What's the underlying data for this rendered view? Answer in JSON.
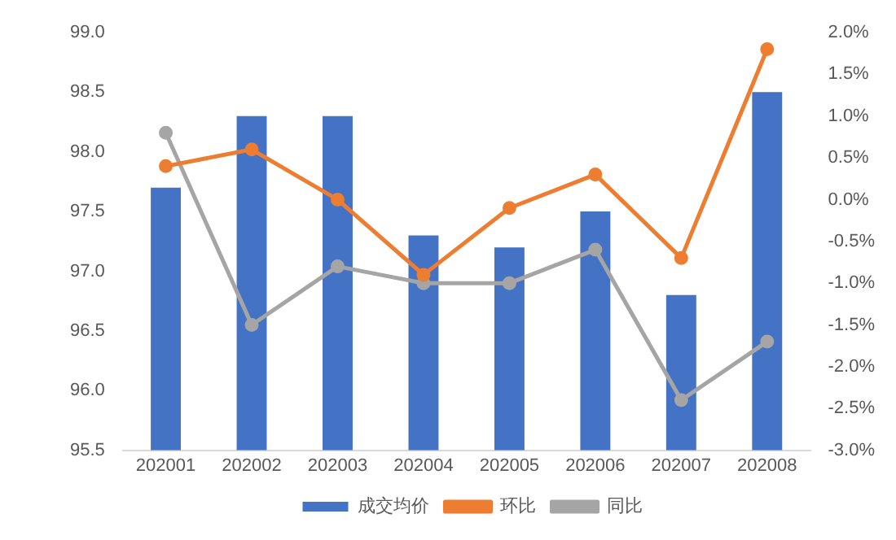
{
  "chart_data": {
    "type": "bar",
    "categories": [
      "202001",
      "202002",
      "202003",
      "202004",
      "202005",
      "202006",
      "202007",
      "202008"
    ],
    "series": [
      {
        "name": "成交均价",
        "color": "#4472c4",
        "values": [
          97.7,
          98.3,
          98.3,
          97.3,
          97.2,
          97.5,
          96.8,
          98.5
        ]
      },
      {
        "name": "环比",
        "type": "line",
        "axis": "y2",
        "color": "#ed7d31",
        "values": [
          0.4,
          0.6,
          0.0,
          -0.9,
          -0.1,
          0.3,
          -0.7,
          1.8
        ]
      },
      {
        "name": "同比",
        "type": "line",
        "axis": "y2",
        "color": "#a5a5a5",
        "values": [
          0.8,
          -1.5,
          -0.8,
          -1.0,
          -1.0,
          -0.6,
          -2.4,
          -1.7
        ]
      }
    ],
    "ylim": [
      95.5,
      99.0
    ],
    "yticks": [
      {
        "value": 95.5,
        "label": "95.5"
      },
      {
        "value": 96,
        "label": "96.0"
      },
      {
        "value": 96.5,
        "label": "96.5"
      },
      {
        "value": 97,
        "label": "97.0"
      },
      {
        "value": 97.5,
        "label": "97.5"
      },
      {
        "value": 98,
        "label": "98.0"
      },
      {
        "value": 98.5,
        "label": "98.5"
      },
      {
        "value": 99,
        "label": "99.0"
      }
    ],
    "y2lim": [
      -3.0,
      2.0
    ],
    "y2ticks": [
      {
        "value": -3,
        "label": "-3.0%"
      },
      {
        "value": -2.5,
        "label": "-2.5%"
      },
      {
        "value": -2,
        "label": "-2.0%"
      },
      {
        "value": -1.5,
        "label": "-1.5%"
      },
      {
        "value": -1,
        "label": "-1.0%"
      },
      {
        "value": -0.5,
        "label": "-0.5%"
      },
      {
        "value": 0,
        "label": "0.0%"
      },
      {
        "value": 0.5,
        "label": "0.5%"
      },
      {
        "value": 1,
        "label": "1.0%"
      },
      {
        "value": 1.5,
        "label": "1.5%"
      },
      {
        "value": 2,
        "label": "2.0%"
      }
    ],
    "grid": false,
    "legend": "bottom",
    "marker": "circle",
    "line_style": "solid"
  }
}
